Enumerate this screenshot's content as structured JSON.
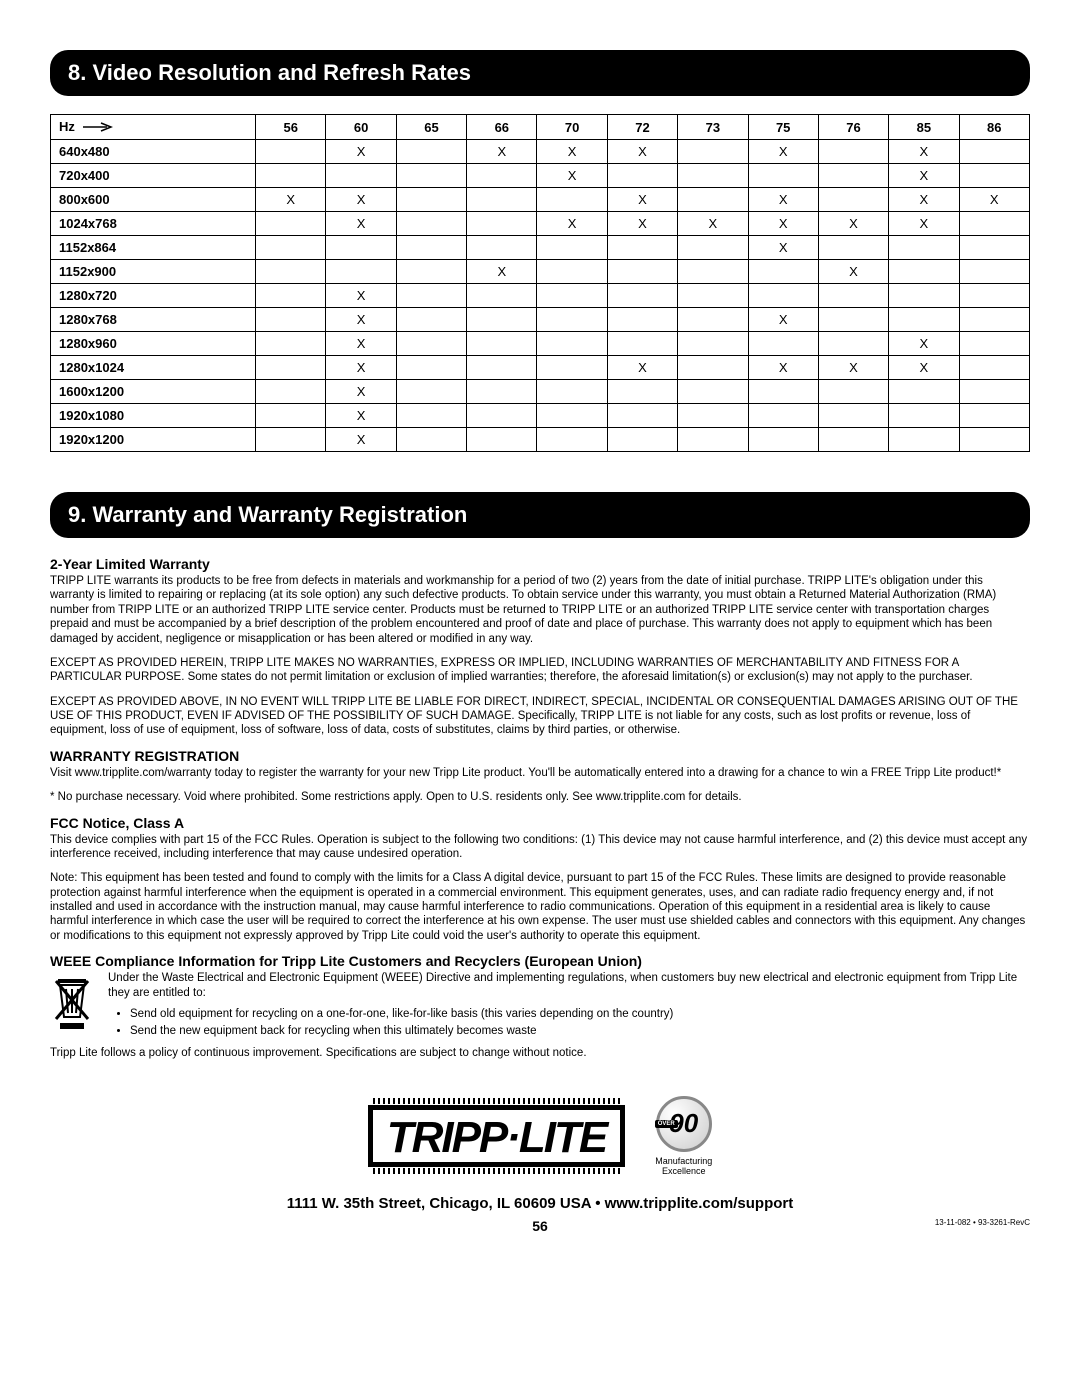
{
  "section8": {
    "title": "8. Video Resolution and Refresh Rates",
    "hz_label": "Hz",
    "columns": [
      "56",
      "60",
      "65",
      "66",
      "70",
      "72",
      "73",
      "75",
      "76",
      "85",
      "86"
    ],
    "rows": [
      {
        "res": "640x480",
        "marks": [
          "",
          "X",
          "",
          "X",
          "X",
          "X",
          "",
          "X",
          "",
          "X",
          ""
        ]
      },
      {
        "res": "720x400",
        "marks": [
          "",
          "",
          "",
          "",
          "X",
          "",
          "",
          "",
          "",
          "X",
          ""
        ]
      },
      {
        "res": "800x600",
        "marks": [
          "X",
          "X",
          "",
          "",
          "",
          "X",
          "",
          "X",
          "",
          "X",
          "X"
        ]
      },
      {
        "res": "1024x768",
        "marks": [
          "",
          "X",
          "",
          "",
          "X",
          "X",
          "X",
          "X",
          "X",
          "X",
          ""
        ]
      },
      {
        "res": "1152x864",
        "marks": [
          "",
          "",
          "",
          "",
          "",
          "",
          "",
          "X",
          "",
          "",
          ""
        ]
      },
      {
        "res": "1152x900",
        "marks": [
          "",
          "",
          "",
          "X",
          "",
          "",
          "",
          "",
          "X",
          "",
          ""
        ]
      },
      {
        "res": "1280x720",
        "marks": [
          "",
          "X",
          "",
          "",
          "",
          "",
          "",
          "",
          "",
          "",
          ""
        ]
      },
      {
        "res": "1280x768",
        "marks": [
          "",
          "X",
          "",
          "",
          "",
          "",
          "",
          "X",
          "",
          "",
          ""
        ]
      },
      {
        "res": "1280x960",
        "marks": [
          "",
          "X",
          "",
          "",
          "",
          "",
          "",
          "",
          "",
          "X",
          ""
        ]
      },
      {
        "res": "1280x1024",
        "marks": [
          "",
          "X",
          "",
          "",
          "",
          "X",
          "",
          "X",
          "X",
          "X",
          ""
        ]
      },
      {
        "res": "1600x1200",
        "marks": [
          "",
          "X",
          "",
          "",
          "",
          "",
          "",
          "",
          "",
          "",
          ""
        ]
      },
      {
        "res": "1920x1080",
        "marks": [
          "",
          "X",
          "",
          "",
          "",
          "",
          "",
          "",
          "",
          "",
          ""
        ]
      },
      {
        "res": "1920x1200",
        "marks": [
          "",
          "X",
          "",
          "",
          "",
          "",
          "",
          "",
          "",
          "",
          ""
        ]
      }
    ]
  },
  "section9": {
    "title": "9. Warranty and Warranty Registration",
    "warranty_heading": "2-Year Limited Warranty",
    "warranty_p1": "TRIPP LITE warrants its products to be free from defects in materials and workmanship for a period of two (2) years from the date of initial purchase. TRIPP LITE's obligation under this warranty is limited to repairing or replacing (at its sole option) any such defective products. To obtain service under this warranty, you must obtain a Returned Material Authorization (RMA) number from TRIPP LITE or an authorized TRIPP LITE service center. Products must be returned to TRIPP LITE or an authorized TRIPP LITE service center with transportation charges prepaid and must be accompanied by a brief description of the problem encountered and proof of date and place of purchase. This warranty does not apply to equipment which has been damaged by accident, negligence or misapplication or has been altered or modified in any way.",
    "warranty_p2": "EXCEPT AS PROVIDED HEREIN, TRIPP LITE MAKES NO WARRANTIES, EXPRESS OR IMPLIED, INCLUDING WARRANTIES OF MERCHANTABILITY AND FITNESS FOR A PARTICULAR PURPOSE. Some states do not permit limitation or exclusion of implied warranties; therefore, the aforesaid limitation(s) or exclusion(s) may not apply to the purchaser.",
    "warranty_p3": "EXCEPT AS PROVIDED ABOVE, IN NO EVENT WILL TRIPP LITE BE LIABLE FOR DIRECT, INDIRECT, SPECIAL, INCIDENTAL OR CONSEQUENTIAL DAMAGES ARISING OUT OF THE USE OF THIS PRODUCT, EVEN IF ADVISED OF THE POSSIBILITY OF SUCH DAMAGE. Specifically, TRIPP LITE is not liable for any costs, such as lost profits or revenue, loss of equipment, loss of use of equipment, loss of software, loss of data, costs of substitutes, claims by third parties, or otherwise.",
    "reg_heading": "WARRANTY REGISTRATION",
    "reg_p1": "Visit www.tripplite.com/warranty today to register the warranty for your new Tripp Lite product. You'll be automatically entered into a drawing for a chance to win a FREE Tripp Lite product!*",
    "reg_p2": "* No purchase necessary. Void where prohibited. Some restrictions apply. Open to U.S. residents only. See www.tripplite.com for details.",
    "fcc_heading": "FCC Notice, Class A",
    "fcc_p1": "This device complies with part 15 of the FCC Rules. Operation is subject to the following two conditions: (1) This device may not cause harmful interference, and (2) this device must accept any interference received, including interference that may cause undesired operation.",
    "fcc_p2": "Note: This equipment has been tested and found to comply with the limits for a Class A digital device, pursuant to part 15 of the FCC Rules. These limits are designed to provide reasonable protection against harmful interference when the equipment is operated in a commercial environment. This equipment generates, uses, and can radiate radio frequency energy and, if not installed and used in accordance with the instruction manual, may cause harmful interference to radio communications. Operation of this equipment in a residential area is likely to cause harmful interference in which case the user will be required to correct the interference at his own expense. The user must use shielded cables and connectors with this equipment. Any changes or modifications to this equipment not expressly approved by Tripp Lite could void the user's authority to operate this equipment.",
    "weee_heading": "WEEE Compliance Information for Tripp Lite Customers and Recyclers (European Union)",
    "weee_p1": "Under the Waste Electrical and Electronic Equipment (WEEE) Directive and implementing regulations, when customers buy new electrical and electronic equipment from Tripp Lite they are entitled to:",
    "weee_b1": "Send old equipment for recycling on a one-for-one, like-for-like basis (this varies depending on the country)",
    "weee_b2": "Send the new equipment back for recycling when this ultimately becomes waste",
    "improvement": "Tripp Lite follows a policy of continuous improvement. Specifications are subject to change without notice."
  },
  "footer": {
    "logo_main": "TRIPP·LITE",
    "badge_over": "OVER",
    "badge_num": "90",
    "badge_sub1": "Manufacturing",
    "badge_sub2": "Excellence",
    "address": "1111 W. 35th Street, Chicago, IL 60609 USA • www.tripplite.com/support",
    "page": "56",
    "doc_code": "13-11-082 • 93-3261-RevC"
  }
}
